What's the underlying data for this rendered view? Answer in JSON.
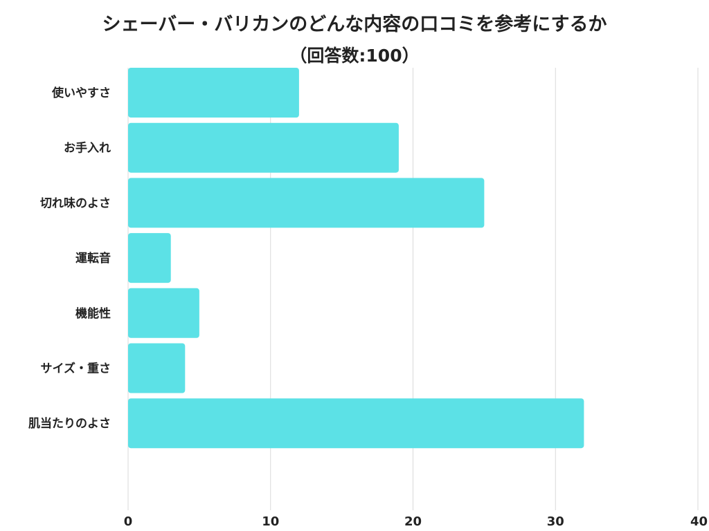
{
  "chart_data": {
    "type": "bar",
    "orientation": "horizontal",
    "title": "シェーバー・バリカンのどんな内容の口コミを参考にするか",
    "subtitle": "（回答数:100）",
    "categories": [
      "使いやすさ",
      "お手入れ",
      "切れ味のよさ",
      "運転音",
      "機能性",
      "サイズ・重さ",
      "肌当たりのよさ"
    ],
    "values": [
      12,
      19,
      25,
      3,
      5,
      4,
      32
    ],
    "xlim": [
      0,
      40
    ],
    "xticks": [
      0,
      10,
      20,
      30,
      40
    ],
    "grid": true,
    "bar_color": "#5ce1e6"
  }
}
